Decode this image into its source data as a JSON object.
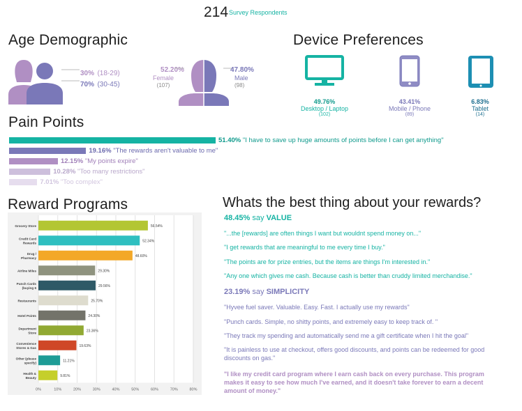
{
  "header": {
    "count": "214",
    "label": "Survey Respondents"
  },
  "age": {
    "title": "Age Demographic",
    "groups": [
      {
        "pct": "30%",
        "range": "(18-29)"
      },
      {
        "pct": "70%",
        "range": "(30-45)"
      }
    ],
    "female": {
      "pct": "52.20%",
      "label": "Female",
      "count": "(107)"
    },
    "male": {
      "pct": "47.80%",
      "label": "Male",
      "count": "(98)"
    }
  },
  "devices": {
    "title": "Device Preferences",
    "items": [
      {
        "icon": "desktop-icon",
        "pct": "49.76%",
        "label": "Desktop / Laptop",
        "count": "(102)"
      },
      {
        "icon": "phone-icon",
        "pct": "43.41%",
        "label": "Mobile / Phone",
        "count": "(89)"
      },
      {
        "icon": "tablet-icon",
        "pct": "6.83%",
        "label": "Tablet",
        "count": "(14)"
      }
    ]
  },
  "pain": {
    "title": "Pain Points",
    "items": [
      {
        "value": 51.4,
        "pct": "51.40%",
        "text": "\"I have to save up huge amounts of points before I can get anything\"",
        "color": "#15b3a3"
      },
      {
        "value": 19.16,
        "pct": "19.16%",
        "text": "\"The rewards aren't valuable to me\"",
        "color": "#7a78b8"
      },
      {
        "value": 12.15,
        "pct": "12.15%",
        "text": "\"My points expire\"",
        "color": "#b08fc3"
      },
      {
        "value": 10.28,
        "pct": "10.28%",
        "text": "\"Too many restrictions\"",
        "color": "#cdbfdc"
      },
      {
        "value": 7.01,
        "pct": "7.01%",
        "text": "\"Too complex\"",
        "color": "#e6ddee"
      }
    ]
  },
  "rewards_title": "Reward Programs",
  "chart_data": {
    "type": "bar",
    "orientation": "horizontal",
    "categories": [
      "Grocery Store",
      "Credit Card Rewards",
      "Drug / Pharmacy Sto...",
      "Airline Miles",
      "Punch Cards (buying 6 ma...",
      "Restaurants",
      "Hotel Points",
      "Department Store",
      "Convenience Stores & Gas",
      "Other (please specify)",
      "Health & Beauty (Sale..."
    ],
    "values": [
      56.54,
      52.34,
      48.6,
      29.3,
      29.56,
      25.7,
      24.3,
      23.36,
      19.63,
      11.21,
      9.81
    ],
    "labels": [
      "56.54%",
      "52.34%",
      "48.60%",
      "29.30%",
      "29.56%",
      "25.70%",
      "24.30%",
      "23.36%",
      "19.63%",
      "11.21%",
      "9.81%"
    ],
    "colors": [
      "#b3c633",
      "#2fbfc0",
      "#f3a828",
      "#8f937f",
      "#2e5966",
      "#dedcce",
      "#73736a",
      "#91a933",
      "#cf4727",
      "#1e9c96",
      "#c5cf2b"
    ],
    "xticks": [
      "0%",
      "10%",
      "20%",
      "30%",
      "40%",
      "50%",
      "60%",
      "70%",
      "80%"
    ],
    "xlim": [
      0,
      80
    ],
    "grid": true
  },
  "best": {
    "title": "Whats the best thing about your rewards?",
    "value_pct": "48.45%",
    "value_say": "say",
    "value_word": "VALUE",
    "value_quotes": [
      "\"...the [rewards] are often things I want but wouldnt spend money on...\"",
      "\"I get rewards that are meaningful to me every time I buy.\"",
      "\"The points are for prize entries, but the items are things I'm interested in.\"",
      "\"Any one which gives me cash. Because cash is better than cruddy limited merchandise.\""
    ],
    "simp_pct": "23.19%",
    "simp_say": "say",
    "simp_word": "SIMPLICITY",
    "simp_quotes": [
      "\"Hyvee fuel saver. Valuable. Easy. Fast. I actually use my rewards\"",
      "\"Punch cards. Simple, no shitty points, and extremely easy to keep track of. \"",
      "\"They track my spending and automatically send me a gift certificate when I hit the goal\"",
      "\"It is painless to use at checkout, offers good discounts, and points can be redeemed for good discounts on gas.\""
    ],
    "final_quote": "\"I like my credit card program where I earn cash back on every purchase. This program makes it easy to see how much I've earned, and it doesn't take forever to earn a decent amount of money.\""
  }
}
